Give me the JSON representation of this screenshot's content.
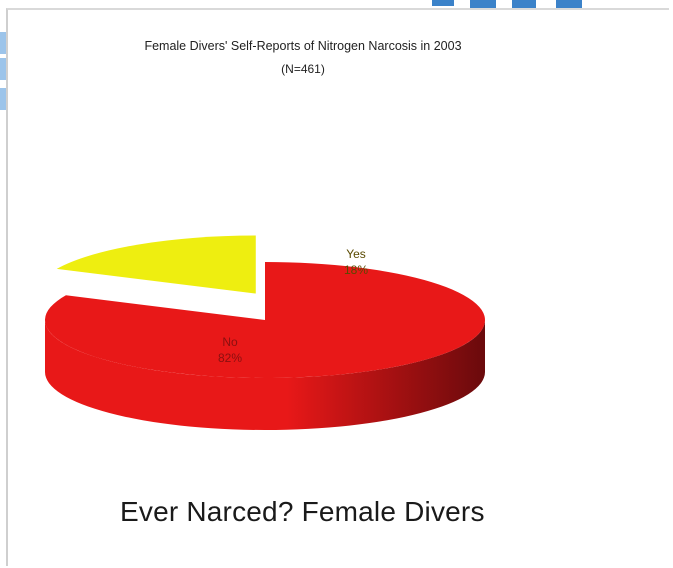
{
  "chart_data": {
    "type": "pie",
    "title": "Female Divers' Self-Reports of Nitrogen Narcosis in 2003",
    "subtitle": "(N=461)",
    "slices": [
      {
        "label": "No",
        "percent": 82,
        "color": "#e81818",
        "dark": "#6a0a0c"
      },
      {
        "label": "Yes",
        "percent": 18,
        "color": "#eeee10",
        "dark": "#6e6e22"
      }
    ],
    "legend": "none",
    "three_d": true,
    "exploded": "Yes"
  },
  "caption": "Ever Narced? Female Divers"
}
